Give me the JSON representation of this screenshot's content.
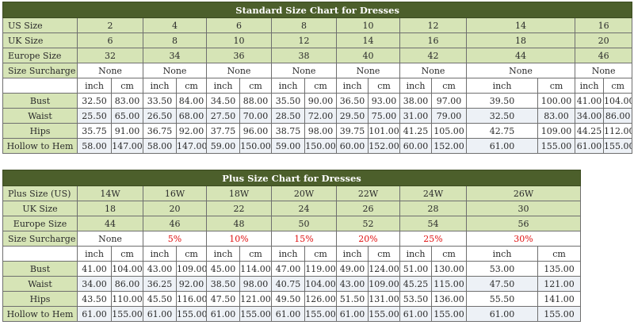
{
  "standard": {
    "title": "Standard Size Chart for Dresses",
    "us_size": {
      "label": "US Size",
      "values": [
        "2",
        "4",
        "6",
        "8",
        "10",
        "12",
        "14",
        "16"
      ]
    },
    "uk_size": {
      "label": "UK Size",
      "values": [
        "6",
        "8",
        "10",
        "12",
        "14",
        "16",
        "18",
        "20"
      ]
    },
    "europe_size": {
      "label": "Europe Size",
      "values": [
        "32",
        "34",
        "36",
        "38",
        "40",
        "42",
        "44",
        "46"
      ]
    },
    "surcharge": {
      "label": "Size Surcharge",
      "values": [
        "None",
        "None",
        "None",
        "None",
        "None",
        "None",
        "None",
        "None"
      ]
    },
    "unit_inch": "inch",
    "unit_cm": "cm",
    "rows": [
      {
        "label": "Bust",
        "values": [
          "32.50",
          "83.00",
          "33.50",
          "84.00",
          "34.50",
          "88.00",
          "35.50",
          "90.00",
          "36.50",
          "93.00",
          "38.00",
          "97.00",
          "39.50",
          "100.00",
          "41.00",
          "104.00"
        ]
      },
      {
        "label": "Waist",
        "values": [
          "25.50",
          "65.00",
          "26.50",
          "68.00",
          "27.50",
          "70.00",
          "28.50",
          "72.00",
          "29.50",
          "75.00",
          "31.00",
          "79.00",
          "32.50",
          "83.00",
          "34.00",
          "86.00"
        ]
      },
      {
        "label": "Hips",
        "values": [
          "35.75",
          "91.00",
          "36.75",
          "92.00",
          "37.75",
          "96.00",
          "38.75",
          "98.00",
          "39.75",
          "101.00",
          "41.25",
          "105.00",
          "42.75",
          "109.00",
          "44.25",
          "112.00"
        ]
      },
      {
        "label": "Hollow to Hem",
        "values": [
          "58.00",
          "147.00",
          "58.00",
          "147.00",
          "59.00",
          "150.00",
          "59.00",
          "150.00",
          "60.00",
          "152.00",
          "60.00",
          "152.00",
          "61.00",
          "155.00",
          "61.00",
          "155.00"
        ]
      }
    ]
  },
  "plus": {
    "title": "Plus Size Chart for Dresses",
    "us_size": {
      "label": "Plus Size (US)",
      "values": [
        "14W",
        "16W",
        "18W",
        "20W",
        "22W",
        "24W",
        "26W"
      ]
    },
    "uk_size": {
      "label": "UK Size",
      "values": [
        "18",
        "20",
        "22",
        "24",
        "26",
        "28",
        "30"
      ]
    },
    "europe_size": {
      "label": "Europe Size",
      "values": [
        "44",
        "46",
        "48",
        "50",
        "52",
        "54",
        "56"
      ]
    },
    "surcharge": {
      "label": "Size Surcharge",
      "values": [
        "None",
        "5%",
        "10%",
        "15%",
        "20%",
        "25%",
        "30%"
      ]
    },
    "surcharge_color": "#e01010",
    "unit_inch": "inch",
    "unit_cm": "cm",
    "rows": [
      {
        "label": "Bust",
        "values": [
          "41.00",
          "104.00",
          "43.00",
          "109.00",
          "45.00",
          "114.00",
          "47.00",
          "119.00",
          "49.00",
          "124.00",
          "51.00",
          "130.00",
          "53.00",
          "135.00"
        ]
      },
      {
        "label": "Waist",
        "values": [
          "34.00",
          "86.00",
          "36.25",
          "92.00",
          "38.50",
          "98.00",
          "40.75",
          "104.00",
          "43.00",
          "109.00",
          "45.25",
          "115.00",
          "47.50",
          "121.00"
        ]
      },
      {
        "label": "Hips",
        "values": [
          "43.50",
          "110.00",
          "45.50",
          "116.00",
          "47.50",
          "121.00",
          "49.50",
          "126.00",
          "51.50",
          "131.00",
          "53.50",
          "136.00",
          "55.50",
          "141.00"
        ]
      },
      {
        "label": "Hollow to Hem",
        "values": [
          "61.00",
          "155.00",
          "61.00",
          "155.00",
          "61.00",
          "155.00",
          "61.00",
          "155.00",
          "61.00",
          "155.00",
          "61.00",
          "155.00",
          "61.00",
          "155.00"
        ]
      }
    ]
  },
  "colors": {
    "header_bg": "#4c5f2b",
    "label_bg": "#d6e4b6",
    "alt_row_bg": "#edf1f6",
    "surcharge_red": "#e01010"
  }
}
